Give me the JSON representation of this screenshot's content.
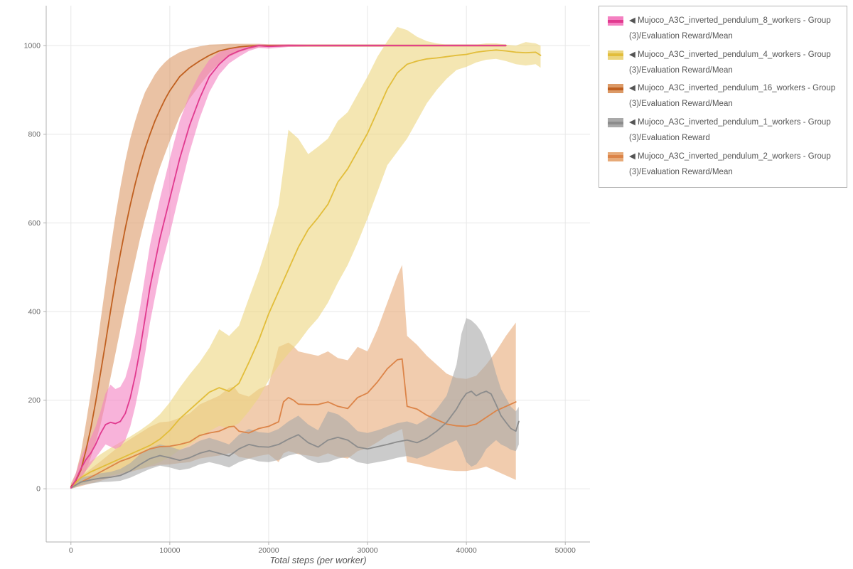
{
  "chart_data": {
    "type": "line",
    "title": "",
    "xlabel": "Total steps (per worker)",
    "ylabel": "",
    "xlim": [
      -2500,
      52500
    ],
    "ylim": [
      -120,
      1090
    ],
    "xticks": [
      0,
      10000,
      20000,
      30000,
      40000,
      50000
    ],
    "yticks": [
      0,
      200,
      400,
      600,
      800,
      1000
    ],
    "grid": true,
    "legend_position": "outside-right",
    "band_draw_order": [
      2,
      4,
      1,
      3,
      0
    ],
    "line_draw_order": [
      4,
      3,
      2,
      1,
      0
    ],
    "series": [
      {
        "name": "◀ Mujoco_A3C_inverted_pendulum_8_workers - Group(3)/Evaluation Reward/Mean",
        "color": "#e13a8f",
        "band_color": "#f480c1",
        "x": [
          0,
          500,
          1000,
          1500,
          2000,
          2500,
          3000,
          3500,
          4000,
          4500,
          5000,
          5500,
          6000,
          6500,
          7000,
          7500,
          8000,
          9000,
          10000,
          11000,
          12000,
          13000,
          14000,
          15000,
          16000,
          17000,
          18000,
          19000,
          20000,
          22000,
          24000,
          26000,
          28000,
          30000,
          32000,
          34000,
          36000,
          38000,
          40000,
          42000,
          44000
        ],
        "y": [
          2,
          20,
          45,
          65,
          80,
          100,
          125,
          145,
          150,
          147,
          152,
          170,
          205,
          255,
          315,
          385,
          455,
          565,
          655,
          745,
          820,
          880,
          930,
          958,
          978,
          988,
          995,
          1000,
          998,
          1000,
          1000,
          1000,
          1000,
          1000,
          1000,
          1000,
          1000,
          1000,
          1000,
          1000,
          1000
        ],
        "band_lower": [
          0,
          10,
          25,
          40,
          55,
          70,
          85,
          100,
          95,
          90,
          95,
          110,
          140,
          185,
          240,
          305,
          375,
          490,
          575,
          670,
          760,
          835,
          895,
          935,
          960,
          975,
          988,
          995,
          993,
          997,
          998,
          998,
          998,
          998,
          998,
          998,
          998,
          998,
          998,
          998,
          998
        ],
        "band_upper": [
          5,
          35,
          70,
          95,
          115,
          140,
          175,
          215,
          235,
          225,
          230,
          250,
          290,
          345,
          410,
          480,
          550,
          655,
          745,
          830,
          890,
          935,
          968,
          985,
          995,
          998,
          1000,
          1003,
          1002,
          1003,
          1002,
          1002,
          1002,
          1002,
          1002,
          1002,
          1002,
          1002,
          1002,
          1002,
          1002
        ]
      },
      {
        "name": "◀ Mujoco_A3C_inverted_pendulum_4_workers - Group(3)/Evaluation Reward/Mean",
        "color": "#e2bd3a",
        "band_color": "#ecd57e",
        "x": [
          0,
          1000,
          2000,
          3000,
          4000,
          5000,
          6000,
          7000,
          8000,
          9000,
          10000,
          11000,
          12000,
          13000,
          14000,
          15000,
          16000,
          17000,
          18000,
          19000,
          20000,
          21000,
          22000,
          23000,
          24000,
          25000,
          26000,
          27000,
          28000,
          29000,
          30000,
          31000,
          32000,
          33000,
          34000,
          35000,
          36000,
          37000,
          38000,
          39000,
          40000,
          41000,
          42000,
          43000,
          44000,
          45000,
          46000,
          47000,
          47500
        ],
        "y": [
          3,
          25,
          38,
          48,
          58,
          68,
          78,
          88,
          98,
          112,
          132,
          158,
          178,
          198,
          218,
          228,
          220,
          238,
          285,
          335,
          395,
          445,
          495,
          545,
          585,
          612,
          642,
          692,
          722,
          762,
          802,
          852,
          902,
          938,
          958,
          965,
          970,
          972,
          975,
          978,
          980,
          985,
          988,
          990,
          988,
          985,
          984,
          985,
          978
        ],
        "band_lower": [
          0,
          10,
          18,
          25,
          30,
          35,
          40,
          45,
          52,
          60,
          72,
          88,
          100,
          115,
          130,
          142,
          136,
          148,
          175,
          205,
          245,
          278,
          305,
          330,
          360,
          385,
          420,
          465,
          505,
          555,
          610,
          670,
          730,
          760,
          790,
          830,
          870,
          900,
          925,
          945,
          952,
          962,
          968,
          970,
          965,
          958,
          955,
          958,
          950
        ],
        "band_upper": [
          8,
          45,
          62,
          78,
          92,
          105,
          118,
          132,
          148,
          168,
          195,
          228,
          258,
          285,
          318,
          360,
          345,
          368,
          430,
          490,
          560,
          640,
          810,
          790,
          755,
          772,
          790,
          830,
          850,
          890,
          930,
          975,
          1010,
          1042,
          1035,
          1020,
          1010,
          1005,
          1002,
          1000,
          1000,
          1002,
          1005,
          1005,
          1002,
          1000,
          1008,
          1005,
          1000
        ]
      },
      {
        "name": "◀ Mujoco_A3C_inverted_pendulum_16_workers - Group(3)/Evaluation Reward/Mean",
        "color": "#c06020",
        "band_color": "#dc9a67",
        "x": [
          0,
          500,
          1000,
          1500,
          2000,
          2500,
          3000,
          3500,
          4000,
          4500,
          5000,
          5500,
          6000,
          6500,
          7000,
          7500,
          8000,
          8500,
          9000,
          9500,
          10000,
          11000,
          12000,
          13000,
          14000,
          15000,
          16000,
          17000,
          18000,
          19000,
          20000,
          25000,
          30000,
          35000,
          40000,
          44000
        ],
        "y": [
          5,
          18,
          42,
          85,
          135,
          195,
          262,
          330,
          400,
          468,
          530,
          588,
          640,
          688,
          730,
          768,
          800,
          830,
          855,
          878,
          898,
          930,
          950,
          965,
          978,
          988,
          993,
          997,
          999,
          1000,
          1000,
          1000,
          1000,
          1000,
          1000,
          1000
        ],
        "band_lower": [
          0,
          8,
          20,
          40,
          70,
          105,
          145,
          195,
          250,
          305,
          360,
          415,
          465,
          515,
          565,
          610,
          650,
          690,
          725,
          755,
          785,
          840,
          880,
          910,
          938,
          960,
          975,
          985,
          992,
          996,
          997,
          997,
          997,
          997,
          997,
          997
        ],
        "band_upper": [
          12,
          35,
          80,
          145,
          215,
          295,
          380,
          460,
          540,
          615,
          680,
          740,
          790,
          830,
          865,
          895,
          915,
          935,
          950,
          962,
          972,
          985,
          993,
          998,
          1002,
          1003,
          1004,
          1004,
          1004,
          1004,
          1003,
          1003,
          1003,
          1003,
          1003,
          1003
        ]
      },
      {
        "name": "◀ Mujoco_A3C_inverted_pendulum_1_workers - Group(3)/Evaluation Reward",
        "color": "#8c8c8c",
        "band_color": "#a9a9a9",
        "x": [
          0,
          1000,
          2000,
          3000,
          4000,
          5000,
          6000,
          7000,
          8000,
          9000,
          10000,
          11000,
          12000,
          13000,
          14000,
          15000,
          16000,
          17000,
          18000,
          19000,
          20000,
          21000,
          22000,
          23000,
          24000,
          25000,
          26000,
          27000,
          28000,
          29000,
          30000,
          31000,
          32000,
          33000,
          34000,
          35000,
          36000,
          37000,
          38000,
          39000,
          39500,
          40000,
          40500,
          41000,
          41500,
          42000,
          42500,
          43000,
          43500,
          44000,
          44500,
          45000,
          45300
        ],
        "y": [
          2,
          15,
          20,
          24,
          26,
          30,
          40,
          55,
          68,
          75,
          70,
          64,
          70,
          80,
          86,
          80,
          74,
          90,
          100,
          95,
          94,
          100,
          112,
          122,
          104,
          94,
          110,
          116,
          110,
          94,
          90,
          95,
          100,
          106,
          110,
          104,
          114,
          130,
          150,
          180,
          200,
          215,
          220,
          210,
          216,
          220,
          214,
          190,
          165,
          150,
          136,
          130,
          152
        ],
        "band_lower": [
          0,
          8,
          12,
          15,
          16,
          18,
          25,
          35,
          45,
          52,
          48,
          42,
          46,
          55,
          60,
          55,
          48,
          60,
          68,
          62,
          60,
          65,
          75,
          80,
          66,
          58,
          60,
          68,
          72,
          60,
          56,
          60,
          64,
          70,
          74,
          68,
          76,
          88,
          100,
          110,
          90,
          60,
          50,
          55,
          70,
          90,
          100,
          110,
          100,
          95,
          88,
          85,
          100
        ],
        "band_upper": [
          5,
          25,
          30,
          35,
          38,
          45,
          58,
          78,
          92,
          100,
          95,
          88,
          95,
          108,
          115,
          108,
          100,
          122,
          135,
          128,
          126,
          135,
          152,
          165,
          145,
          132,
          175,
          168,
          152,
          130,
          126,
          132,
          140,
          148,
          152,
          145,
          158,
          180,
          210,
          280,
          350,
          385,
          380,
          370,
          355,
          330,
          300,
          260,
          225,
          205,
          185,
          175,
          185
        ]
      },
      {
        "name": "◀ Mujoco_A3C_inverted_pendulum_2_workers - Group(3)/Evaluation Reward/Mean",
        "color": "#dc8448",
        "band_color": "#e7aa78",
        "x": [
          0,
          1000,
          2000,
          3000,
          4000,
          5000,
          6000,
          7000,
          8000,
          9000,
          10000,
          11000,
          12000,
          13000,
          14000,
          15000,
          16000,
          16500,
          17000,
          18000,
          19000,
          20000,
          21000,
          21500,
          22000,
          22500,
          23000,
          24000,
          25000,
          26000,
          27000,
          28000,
          29000,
          30000,
          31000,
          32000,
          33000,
          33500,
          34000,
          34500,
          35000,
          36000,
          37000,
          38000,
          39000,
          40000,
          41000,
          42000,
          43000,
          44000,
          45000
        ],
        "y": [
          3,
          15,
          26,
          38,
          50,
          62,
          70,
          80,
          90,
          95,
          96,
          100,
          106,
          120,
          126,
          130,
          140,
          141,
          130,
          126,
          136,
          141,
          151,
          196,
          206,
          200,
          191,
          190,
          190,
          196,
          186,
          181,
          206,
          216,
          241,
          271,
          291,
          293,
          186,
          183,
          180,
          166,
          156,
          146,
          142,
          141,
          146,
          161,
          176,
          186,
          196
        ],
        "band_lower": [
          0,
          6,
          12,
          18,
          25,
          32,
          38,
          44,
          50,
          54,
          55,
          58,
          60,
          68,
          72,
          75,
          80,
          80,
          72,
          68,
          74,
          78,
          60,
          80,
          85,
          82,
          78,
          75,
          72,
          80,
          72,
          68,
          85,
          92,
          105,
          120,
          130,
          135,
          60,
          58,
          56,
          50,
          46,
          42,
          40,
          40,
          44,
          50,
          40,
          30,
          20
        ],
        "band_upper": [
          8,
          28,
          45,
          62,
          80,
          98,
          112,
          126,
          140,
          150,
          152,
          160,
          170,
          190,
          200,
          210,
          228,
          230,
          215,
          208,
          225,
          235,
          320,
          325,
          330,
          322,
          310,
          305,
          300,
          310,
          295,
          290,
          320,
          310,
          360,
          420,
          480,
          505,
          345,
          335,
          325,
          300,
          280,
          260,
          250,
          248,
          255,
          280,
          310,
          345,
          375
        ]
      }
    ]
  },
  "colors": {
    "grid": "#e7e7e7",
    "spine": "#b0b0b0",
    "tick_label": "#666666"
  }
}
